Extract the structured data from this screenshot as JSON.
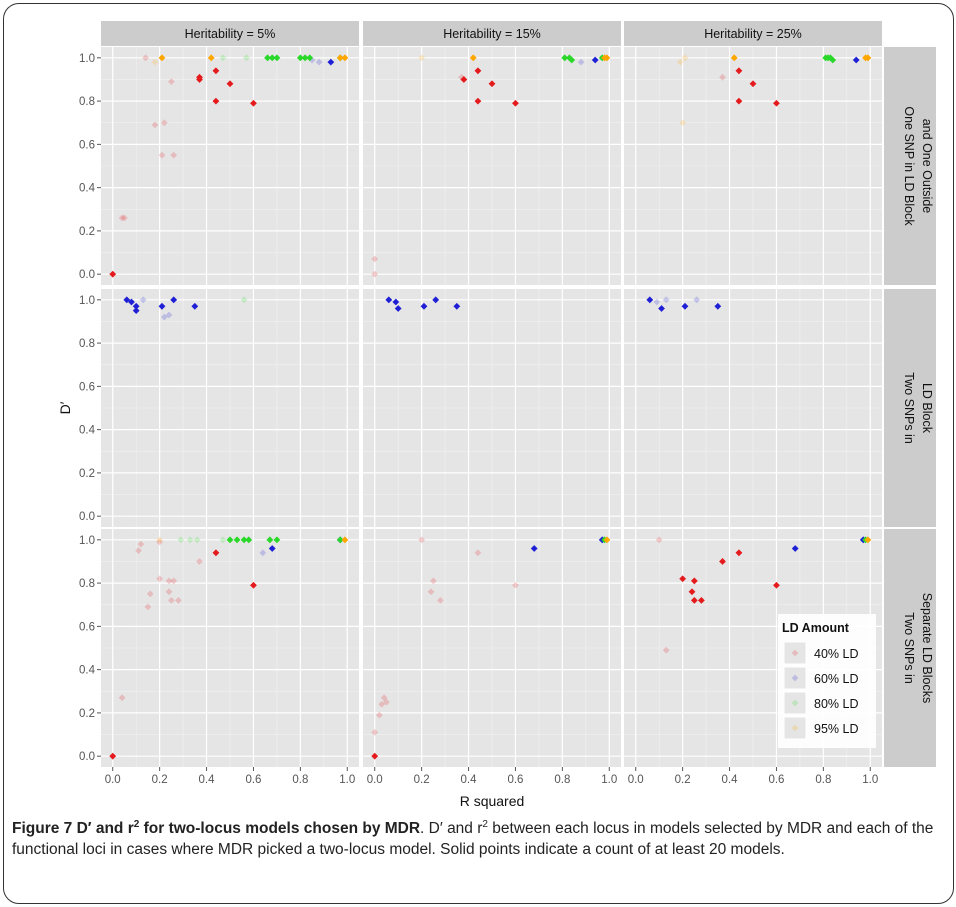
{
  "caption": {
    "figure_label": "Figure 7",
    "title_pre": "D′ and r",
    "title_sup": "2",
    "title_post": " for two-locus models chosen by MDR",
    "body_1": ". D′ and r",
    "body_sup": "2",
    "body_2": " between each locus in models selected by MDR and each of the functional loci in cases where MDR picked a two-locus model. Solid points indicate a count of at least 20 models."
  },
  "chart_data": {
    "type": "scatter",
    "xlabel": "R squared",
    "ylabel": "D′",
    "xlim": [
      -0.05,
      1.05
    ],
    "ylim": [
      -0.05,
      1.05
    ],
    "x_ticks": [
      "0.0",
      "0.2",
      "0.4",
      "0.6",
      "0.8",
      "1.0"
    ],
    "y_ticks": [
      "0.0",
      "0.2",
      "0.4",
      "0.6",
      "0.8",
      "1.0"
    ],
    "grid": true,
    "columns": [
      "Heritability = 5%",
      "Heritability = 15%",
      "Heritability = 25%"
    ],
    "rows": [
      "One SNP in LD Block and One Outside",
      "Two SNPs in LD Block",
      "Two SNPs in Separate LD Blocks"
    ],
    "rows_lines": [
      [
        "One SNP in LD Block",
        "and One Outside"
      ],
      [
        "Two SNPs in",
        "LD Block"
      ],
      [
        "Two SNPs in",
        "Separate LD Blocks"
      ]
    ],
    "legend": {
      "title": "LD Amount",
      "placement": "bottom-right",
      "entries": [
        {
          "label": "40% LD",
          "color": "#e41a1c"
        },
        {
          "label": "60% LD",
          "color": "#1f1fd6"
        },
        {
          "label": "80% LD",
          "color": "#2ad82a"
        },
        {
          "label": "95% LD",
          "color": "#ffa500"
        }
      ]
    },
    "colors": {
      "40": "#e41a1c",
      "60": "#1f1fd6",
      "80": "#2ad82a",
      "95": "#ffa500"
    },
    "panels": [
      {
        "row": 0,
        "col": 0,
        "points": [
          [
            0.0,
            0.0,
            40,
            1
          ],
          [
            0.04,
            0.26,
            40,
            0
          ],
          [
            0.05,
            0.26,
            40,
            0
          ],
          [
            0.14,
            1.0,
            40,
            0
          ],
          [
            0.18,
            0.69,
            40,
            0
          ],
          [
            0.21,
            0.55,
            40,
            0
          ],
          [
            0.22,
            0.7,
            40,
            0
          ],
          [
            0.25,
            0.89,
            40,
            0
          ],
          [
            0.26,
            0.55,
            40,
            0
          ],
          [
            0.37,
            0.91,
            40,
            1
          ],
          [
            0.37,
            0.9,
            40,
            1
          ],
          [
            0.44,
            0.8,
            40,
            1
          ],
          [
            0.44,
            0.94,
            40,
            1
          ],
          [
            0.5,
            0.88,
            40,
            1
          ],
          [
            0.6,
            0.79,
            40,
            1
          ],
          [
            0.85,
            0.99,
            60,
            0
          ],
          [
            0.88,
            0.98,
            60,
            0
          ],
          [
            0.93,
            0.98,
            60,
            1
          ],
          [
            0.47,
            1.0,
            80,
            0
          ],
          [
            0.57,
            1.0,
            80,
            0
          ],
          [
            0.66,
            1.0,
            80,
            1
          ],
          [
            0.68,
            1.0,
            80,
            1
          ],
          [
            0.7,
            1.0,
            80,
            1
          ],
          [
            0.8,
            1.0,
            80,
            1
          ],
          [
            0.82,
            1.0,
            80,
            1
          ],
          [
            0.84,
            1.0,
            80,
            1
          ],
          [
            0.97,
            1.0,
            80,
            1
          ],
          [
            0.18,
            0.98,
            95,
            0
          ],
          [
            0.21,
            1.0,
            95,
            1
          ],
          [
            0.42,
            1.0,
            95,
            1
          ],
          [
            0.97,
            1.0,
            95,
            1
          ],
          [
            0.99,
            1.0,
            95,
            1
          ]
        ]
      },
      {
        "row": 0,
        "col": 1,
        "points": [
          [
            0.0,
            0.0,
            40,
            0
          ],
          [
            0.0,
            0.07,
            40,
            0
          ],
          [
            0.37,
            0.91,
            40,
            0
          ],
          [
            0.38,
            0.9,
            40,
            1
          ],
          [
            0.44,
            0.94,
            40,
            1
          ],
          [
            0.44,
            0.8,
            40,
            1
          ],
          [
            0.5,
            0.88,
            40,
            1
          ],
          [
            0.6,
            0.79,
            40,
            1
          ],
          [
            0.88,
            0.98,
            60,
            0
          ],
          [
            0.94,
            0.99,
            60,
            1
          ],
          [
            0.81,
            1.0,
            80,
            1
          ],
          [
            0.83,
            1.0,
            80,
            1
          ],
          [
            0.84,
            0.99,
            80,
            1
          ],
          [
            0.97,
            1.0,
            80,
            1
          ],
          [
            0.2,
            1.0,
            95,
            0
          ],
          [
            0.42,
            1.0,
            95,
            1
          ],
          [
            0.98,
            1.0,
            95,
            1
          ],
          [
            0.99,
            1.0,
            95,
            1
          ]
        ]
      },
      {
        "row": 0,
        "col": 2,
        "points": [
          [
            0.37,
            0.91,
            40,
            0
          ],
          [
            0.44,
            0.94,
            40,
            1
          ],
          [
            0.44,
            0.8,
            40,
            1
          ],
          [
            0.5,
            0.88,
            40,
            1
          ],
          [
            0.6,
            0.79,
            40,
            1
          ],
          [
            0.94,
            0.99,
            60,
            1
          ],
          [
            0.81,
            1.0,
            80,
            1
          ],
          [
            0.82,
            1.0,
            80,
            1
          ],
          [
            0.83,
            1.0,
            80,
            1
          ],
          [
            0.84,
            0.99,
            80,
            1
          ],
          [
            0.2,
            0.7,
            95,
            0
          ],
          [
            0.19,
            0.98,
            95,
            0
          ],
          [
            0.21,
            1.0,
            95,
            0
          ],
          [
            0.42,
            1.0,
            95,
            1
          ],
          [
            0.98,
            1.0,
            95,
            1
          ],
          [
            0.99,
            1.0,
            95,
            1
          ]
        ]
      },
      {
        "row": 1,
        "col": 0,
        "points": [
          [
            0.06,
            1.0,
            60,
            1
          ],
          [
            0.08,
            0.99,
            60,
            1
          ],
          [
            0.1,
            0.95,
            60,
            1
          ],
          [
            0.1,
            0.97,
            60,
            1
          ],
          [
            0.13,
            1.0,
            60,
            0
          ],
          [
            0.21,
            0.97,
            60,
            1
          ],
          [
            0.22,
            0.92,
            60,
            0
          ],
          [
            0.24,
            0.93,
            60,
            0
          ],
          [
            0.26,
            1.0,
            60,
            1
          ],
          [
            0.35,
            0.97,
            60,
            1
          ],
          [
            0.56,
            1.0,
            80,
            0
          ]
        ]
      },
      {
        "row": 1,
        "col": 1,
        "points": [
          [
            0.06,
            1.0,
            60,
            1
          ],
          [
            0.09,
            0.99,
            60,
            1
          ],
          [
            0.1,
            0.96,
            60,
            1
          ],
          [
            0.21,
            0.97,
            60,
            1
          ],
          [
            0.26,
            1.0,
            60,
            1
          ],
          [
            0.35,
            0.97,
            60,
            1
          ]
        ]
      },
      {
        "row": 1,
        "col": 2,
        "points": [
          [
            0.06,
            1.0,
            60,
            1
          ],
          [
            0.09,
            0.99,
            60,
            0
          ],
          [
            0.11,
            0.96,
            60,
            1
          ],
          [
            0.13,
            1.0,
            60,
            0
          ],
          [
            0.21,
            0.97,
            60,
            1
          ],
          [
            0.26,
            1.0,
            60,
            0
          ],
          [
            0.35,
            0.97,
            60,
            1
          ]
        ]
      },
      {
        "row": 2,
        "col": 0,
        "points": [
          [
            0.0,
            0.0,
            40,
            1
          ],
          [
            0.04,
            0.27,
            40,
            0
          ],
          [
            0.11,
            0.95,
            40,
            0
          ],
          [
            0.12,
            0.98,
            40,
            0
          ],
          [
            0.15,
            0.69,
            40,
            0
          ],
          [
            0.16,
            0.75,
            40,
            0
          ],
          [
            0.2,
            0.99,
            40,
            0
          ],
          [
            0.2,
            0.82,
            40,
            0
          ],
          [
            0.24,
            0.81,
            40,
            0
          ],
          [
            0.24,
            0.76,
            40,
            0
          ],
          [
            0.26,
            0.81,
            40,
            0
          ],
          [
            0.25,
            0.72,
            40,
            0
          ],
          [
            0.28,
            0.72,
            40,
            0
          ],
          [
            0.37,
            0.9,
            40,
            0
          ],
          [
            0.44,
            0.94,
            40,
            1
          ],
          [
            0.6,
            0.79,
            40,
            1
          ],
          [
            0.64,
            0.94,
            60,
            0
          ],
          [
            0.68,
            0.96,
            60,
            1
          ],
          [
            0.97,
            1.0,
            60,
            1
          ],
          [
            0.97,
            1.0,
            80,
            1
          ],
          [
            0.29,
            1.0,
            80,
            0
          ],
          [
            0.33,
            1.0,
            80,
            0
          ],
          [
            0.36,
            1.0,
            80,
            0
          ],
          [
            0.47,
            1.0,
            80,
            0
          ],
          [
            0.5,
            1.0,
            80,
            1
          ],
          [
            0.53,
            1.0,
            80,
            1
          ],
          [
            0.56,
            1.0,
            80,
            1
          ],
          [
            0.58,
            1.0,
            80,
            1
          ],
          [
            0.67,
            1.0,
            80,
            1
          ],
          [
            0.7,
            1.0,
            80,
            1
          ],
          [
            0.2,
            1.0,
            95,
            0
          ],
          [
            0.99,
            1.0,
            95,
            1
          ]
        ]
      },
      {
        "row": 2,
        "col": 1,
        "points": [
          [
            0.0,
            0.0,
            40,
            1
          ],
          [
            0.0,
            0.11,
            40,
            0
          ],
          [
            0.02,
            0.19,
            40,
            0
          ],
          [
            0.03,
            0.24,
            40,
            0
          ],
          [
            0.04,
            0.27,
            40,
            0
          ],
          [
            0.05,
            0.25,
            40,
            0
          ],
          [
            0.2,
            1.0,
            40,
            0
          ],
          [
            0.24,
            0.76,
            40,
            0
          ],
          [
            0.25,
            0.81,
            40,
            0
          ],
          [
            0.28,
            0.72,
            40,
            0
          ],
          [
            0.44,
            0.94,
            40,
            0
          ],
          [
            0.6,
            0.79,
            40,
            0
          ],
          [
            0.68,
            0.96,
            60,
            1
          ],
          [
            0.97,
            1.0,
            60,
            1
          ],
          [
            0.98,
            1.0,
            80,
            1
          ],
          [
            0.99,
            1.0,
            95,
            1
          ]
        ]
      },
      {
        "row": 2,
        "col": 2,
        "points": [
          [
            0.1,
            1.0,
            40,
            0
          ],
          [
            0.13,
            0.49,
            40,
            0
          ],
          [
            0.2,
            0.82,
            40,
            1
          ],
          [
            0.24,
            0.76,
            40,
            1
          ],
          [
            0.25,
            0.81,
            40,
            1
          ],
          [
            0.25,
            0.72,
            40,
            1
          ],
          [
            0.28,
            0.72,
            40,
            1
          ],
          [
            0.37,
            0.9,
            40,
            1
          ],
          [
            0.44,
            0.94,
            40,
            1
          ],
          [
            0.6,
            0.79,
            40,
            1
          ],
          [
            0.68,
            0.96,
            60,
            1
          ],
          [
            0.97,
            1.0,
            60,
            1
          ],
          [
            0.98,
            1.0,
            80,
            1
          ],
          [
            0.99,
            1.0,
            95,
            1
          ]
        ]
      }
    ]
  }
}
